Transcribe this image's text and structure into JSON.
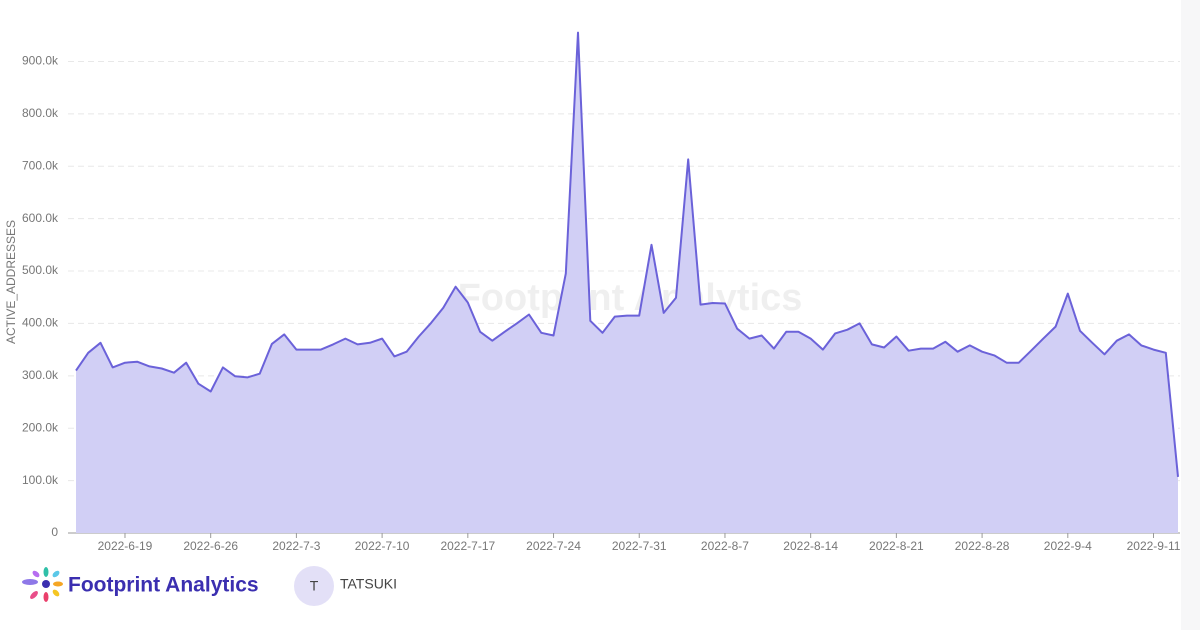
{
  "chart_data": {
    "type": "area",
    "y_label": "ACTIVE_ADDRESSES",
    "watermark": "Footprint Analytics",
    "color": "#6b62d9",
    "fill": "#d1cff5",
    "x": [
      "2022-6-15",
      "2022-6-16",
      "2022-6-17",
      "2022-6-18",
      "2022-6-19",
      "2022-6-20",
      "2022-6-21",
      "2022-6-22",
      "2022-6-23",
      "2022-6-24",
      "2022-6-25",
      "2022-6-26",
      "2022-6-27",
      "2022-6-28",
      "2022-6-29",
      "2022-6-30",
      "2022-7-1",
      "2022-7-2",
      "2022-7-3",
      "2022-7-4",
      "2022-7-5",
      "2022-7-6",
      "2022-7-7",
      "2022-7-8",
      "2022-7-9",
      "2022-7-10",
      "2022-7-11",
      "2022-7-12",
      "2022-7-13",
      "2022-7-14",
      "2022-7-15",
      "2022-7-16",
      "2022-7-17",
      "2022-7-18",
      "2022-7-19",
      "2022-7-20",
      "2022-7-21",
      "2022-7-22",
      "2022-7-23",
      "2022-7-24",
      "2022-7-25",
      "2022-7-26",
      "2022-7-27",
      "2022-7-28",
      "2022-7-29",
      "2022-7-30",
      "2022-7-31",
      "2022-8-1",
      "2022-8-2",
      "2022-8-3",
      "2022-8-4",
      "2022-8-5",
      "2022-8-6",
      "2022-8-7",
      "2022-8-8",
      "2022-8-9",
      "2022-8-10",
      "2022-8-11",
      "2022-8-12",
      "2022-8-13",
      "2022-8-14",
      "2022-8-15",
      "2022-8-16",
      "2022-8-17",
      "2022-8-18",
      "2022-8-19",
      "2022-8-20",
      "2022-8-21",
      "2022-8-22",
      "2022-8-23",
      "2022-8-24",
      "2022-8-25",
      "2022-8-26",
      "2022-8-27",
      "2022-8-28",
      "2022-8-29",
      "2022-8-30",
      "2022-8-31",
      "2022-9-1",
      "2022-9-2",
      "2022-9-3",
      "2022-9-4",
      "2022-9-5",
      "2022-9-6",
      "2022-9-7",
      "2022-9-8",
      "2022-9-9",
      "2022-9-10",
      "2022-9-11",
      "2022-9-12",
      "2022-9-13"
    ],
    "values": [
      310000,
      344000,
      363000,
      316000,
      325000,
      327000,
      318000,
      314000,
      306000,
      325000,
      285000,
      270000,
      316000,
      299000,
      297000,
      304000,
      361000,
      379000,
      350000,
      350000,
      350000,
      360000,
      371000,
      360000,
      363000,
      371000,
      337000,
      346000,
      375000,
      401000,
      430000,
      470000,
      440000,
      384000,
      367000,
      384000,
      400000,
      417000,
      382000,
      377000,
      495000,
      955000,
      405000,
      382000,
      413000,
      415000,
      415000,
      550000,
      420000,
      449000,
      713000,
      436000,
      439000,
      438000,
      390000,
      371000,
      377000,
      352000,
      384000,
      384000,
      371000,
      350000,
      381000,
      388000,
      400000,
      360000,
      354000,
      375000,
      348000,
      352000,
      352000,
      365000,
      346000,
      358000,
      346000,
      339000,
      325000,
      325000,
      348000,
      371000,
      394000,
      457000,
      386000,
      363000,
      341000,
      367000,
      379000,
      358000,
      350000,
      344000,
      107000
    ],
    "xlim": [
      "2022-6-15",
      "2022-9-13"
    ],
    "xticks": [
      "2022-6-19",
      "2022-6-26",
      "2022-7-3",
      "2022-7-10",
      "2022-7-17",
      "2022-7-24",
      "2022-7-31",
      "2022-8-7",
      "2022-8-14",
      "2022-8-21",
      "2022-8-28",
      "2022-9-4",
      "2022-9-11"
    ],
    "ylim": [
      0,
      960000
    ],
    "yticks": [
      0,
      {
        "value": 100000,
        "label": "100.0k"
      },
      {
        "value": 200000,
        "label": "200.0k"
      },
      {
        "value": 300000,
        "label": "300.0k"
      },
      {
        "value": 400000,
        "label": "400.0k"
      },
      {
        "value": 500000,
        "label": "500.0k"
      },
      {
        "value": 600000,
        "label": "600.0k"
      },
      {
        "value": 700000,
        "label": "700.0k"
      },
      {
        "value": 800000,
        "label": "800.0k"
      },
      {
        "value": 900000,
        "label": "900.0k"
      }
    ],
    "grid": true
  },
  "footer": {
    "brand": "Footprint Analytics",
    "avatar": "T",
    "user": "TATSUKI"
  }
}
